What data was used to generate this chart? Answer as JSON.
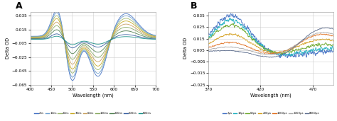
{
  "panel_A": {
    "title": "A",
    "xlabel": "Wavelength (nm)",
    "ylabel": "Delta OD",
    "xlim": [
      400,
      700
    ],
    "ylim": [
      -0.065,
      0.04
    ],
    "yticks": [
      -0.065,
      -0.045,
      -0.025,
      -0.005,
      0.015,
      0.035
    ],
    "xticks": [
      400,
      450,
      500,
      550,
      600,
      650,
      700
    ],
    "legend_labels": [
      "2ns",
      "10ns",
      "20ns",
      "30ns",
      "50ns",
      "100ns",
      "200ns",
      "500ns",
      "800ns"
    ],
    "line_colors": [
      "#4472c4",
      "#6fa0d0",
      "#9db870",
      "#c8a820",
      "#c8a060",
      "#88aa60",
      "#508050",
      "#3860a0",
      "#189088"
    ]
  },
  "panel_B": {
    "title": "B",
    "xlabel": "Wavelength (nm)",
    "ylabel": "Delta OD",
    "xlim": [
      370,
      490
    ],
    "ylim": [
      -0.025,
      0.038
    ],
    "yticks": [
      -0.025,
      -0.015,
      -0.005,
      0.005,
      0.015,
      0.025,
      0.035
    ],
    "xticks": [
      370,
      420,
      470
    ],
    "legend_labels": [
      "2μs",
      "10μs",
      "50μs",
      "200μs",
      "1000μs",
      "2000μs",
      "8000μs"
    ],
    "line_colors": [
      "#4472c4",
      "#20b0c0",
      "#70aa30",
      "#d4a020",
      "#e07020",
      "#aaaaaa",
      "#607090"
    ]
  },
  "background_color": "#ffffff",
  "grid_color": "#c8c8c8"
}
